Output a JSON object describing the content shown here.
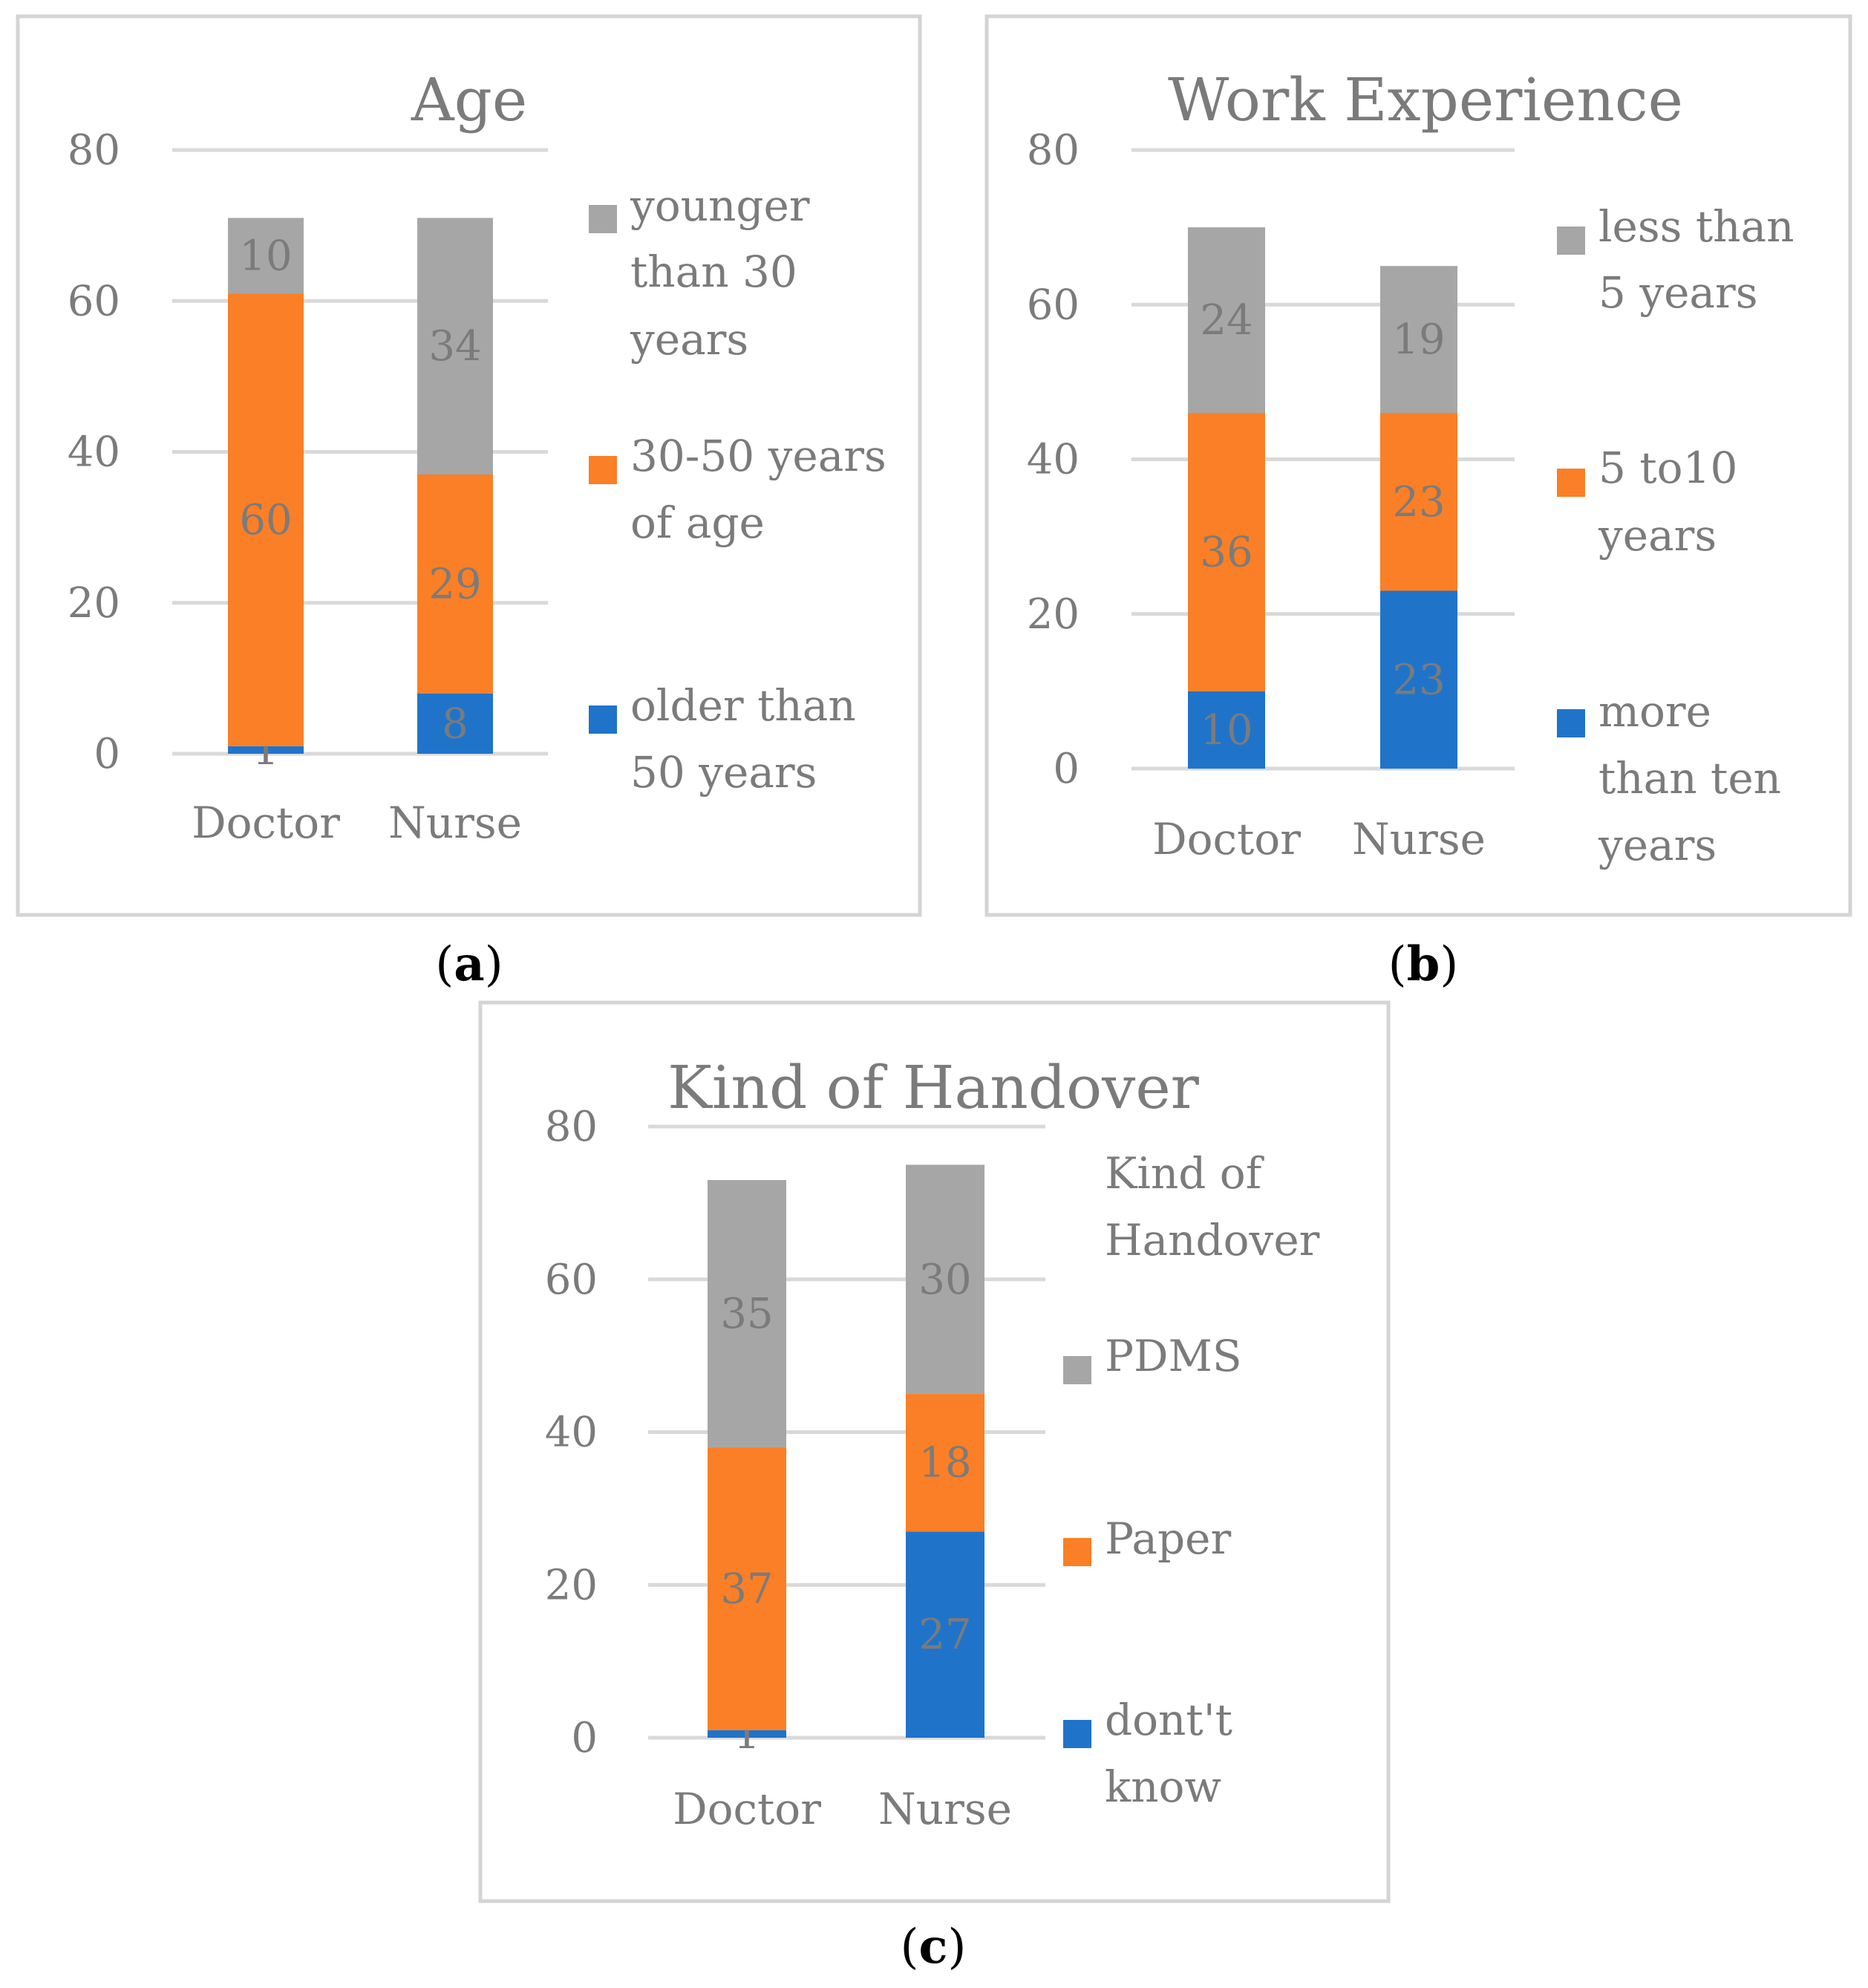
{
  "colors": {
    "blue": "#1f74ca",
    "orange": "#fb7f26",
    "gray": "#a6a6a6",
    "text": "#7b7b7b",
    "grid": "#d9d9d9",
    "frame": "#d4d4d4",
    "caption": "#000000"
  },
  "chart_data": [
    {
      "type": "bar",
      "stacked": true,
      "title": "Age",
      "caption": "(a)",
      "categories": [
        "Doctor",
        "Nurse"
      ],
      "ylim": [
        0,
        80
      ],
      "yticks": [
        0,
        20,
        40,
        60,
        80
      ],
      "grid": true,
      "legend_position": "right",
      "series": [
        {
          "name": "older than 50 years",
          "color": "blue",
          "values": [
            1,
            8
          ],
          "value_labels": [
            "1",
            "8"
          ]
        },
        {
          "name": "30-50 years of age",
          "color": "orange",
          "values": [
            60,
            29
          ],
          "value_labels": [
            "60",
            "29"
          ]
        },
        {
          "name": "younger than 30 years",
          "color": "gray",
          "values": [
            10,
            34
          ],
          "value_labels": [
            "10",
            "34"
          ]
        }
      ]
    },
    {
      "type": "bar",
      "stacked": true,
      "title": "Work Experience",
      "caption": "(b)",
      "categories": [
        "Doctor",
        "Nurse"
      ],
      "ylim": [
        0,
        80
      ],
      "yticks": [
        0,
        20,
        40,
        60,
        80
      ],
      "grid": true,
      "legend_position": "right",
      "series": [
        {
          "name": "more than ten years",
          "color": "blue",
          "values": [
            10,
            23
          ],
          "value_labels": [
            "10",
            "23"
          ]
        },
        {
          "name": "5 to10 years",
          "color": "orange",
          "values": [
            36,
            23
          ],
          "value_labels": [
            "36",
            "23"
          ]
        },
        {
          "name": "less than 5 years",
          "color": "gray",
          "values": [
            24,
            19
          ],
          "value_labels": [
            "24",
            "19"
          ]
        }
      ]
    },
    {
      "type": "bar",
      "stacked": true,
      "title": "Kind of Handover",
      "caption": "(c)",
      "legend_title": "Kind of Handover",
      "categories": [
        "Doctor",
        "Nurse"
      ],
      "ylim": [
        0,
        80
      ],
      "yticks": [
        0,
        20,
        40,
        60,
        80
      ],
      "grid": true,
      "legend_position": "right",
      "series": [
        {
          "name": "dont't know",
          "color": "blue",
          "values": [
            1,
            27
          ],
          "value_labels": [
            "1",
            "27"
          ]
        },
        {
          "name": "Paper",
          "color": "orange",
          "values": [
            37,
            18
          ],
          "value_labels": [
            "37",
            "18"
          ]
        },
        {
          "name": "PDMS",
          "color": "gray",
          "values": [
            35,
            30
          ],
          "value_labels": [
            "35",
            "30"
          ]
        }
      ]
    }
  ]
}
